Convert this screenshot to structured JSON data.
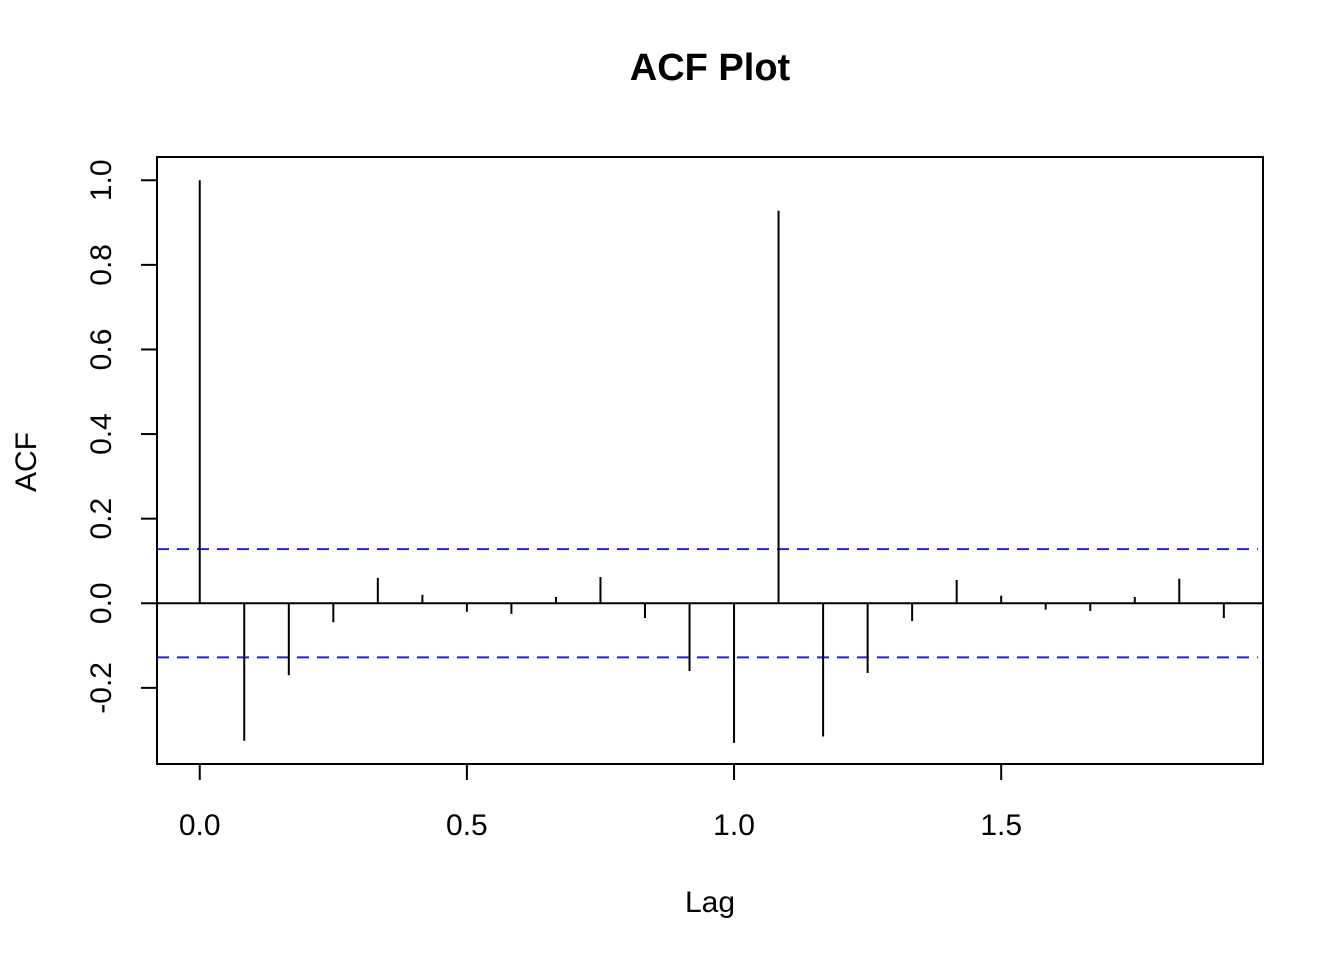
{
  "chart_data": {
    "type": "bar",
    "subtype": "acf",
    "title": "ACF Plot",
    "xlabel": "Lag",
    "ylabel": "ACF",
    "xlim": [
      -0.08,
      1.99
    ],
    "ylim": [
      -0.38,
      1.055
    ],
    "x_ticks": [
      0.0,
      0.5,
      1.0,
      1.5
    ],
    "x_tick_labels": [
      "0.0",
      "0.5",
      "1.0",
      "1.5"
    ],
    "y_ticks": [
      -0.2,
      0.0,
      0.2,
      0.4,
      0.6,
      0.8,
      1.0
    ],
    "y_tick_labels": [
      "-0.2",
      "0.0",
      "0.2",
      "0.4",
      "0.6",
      "0.8",
      "1.0"
    ],
    "lags": [
      0.0,
      0.0833,
      0.1667,
      0.25,
      0.3333,
      0.4167,
      0.5,
      0.5833,
      0.6667,
      0.75,
      0.8333,
      0.9167,
      1.0,
      1.0833,
      1.1667,
      1.25,
      1.3333,
      1.4167,
      1.5,
      1.5833,
      1.6667,
      1.75,
      1.8333,
      1.9167
    ],
    "acf": [
      1.0,
      -0.325,
      -0.17,
      -0.045,
      0.06,
      0.02,
      -0.02,
      -0.025,
      0.015,
      0.062,
      -0.035,
      -0.16,
      -0.33,
      0.928,
      -0.315,
      -0.165,
      -0.042,
      0.055,
      0.018,
      -0.015,
      -0.018,
      0.015,
      0.058,
      -0.035
    ],
    "confidence_bound": 0.128,
    "zero_line": true,
    "grid": false,
    "colors": {
      "bars": "#000000",
      "confidence_lines": "#2222dd",
      "axes": "#000000"
    }
  }
}
